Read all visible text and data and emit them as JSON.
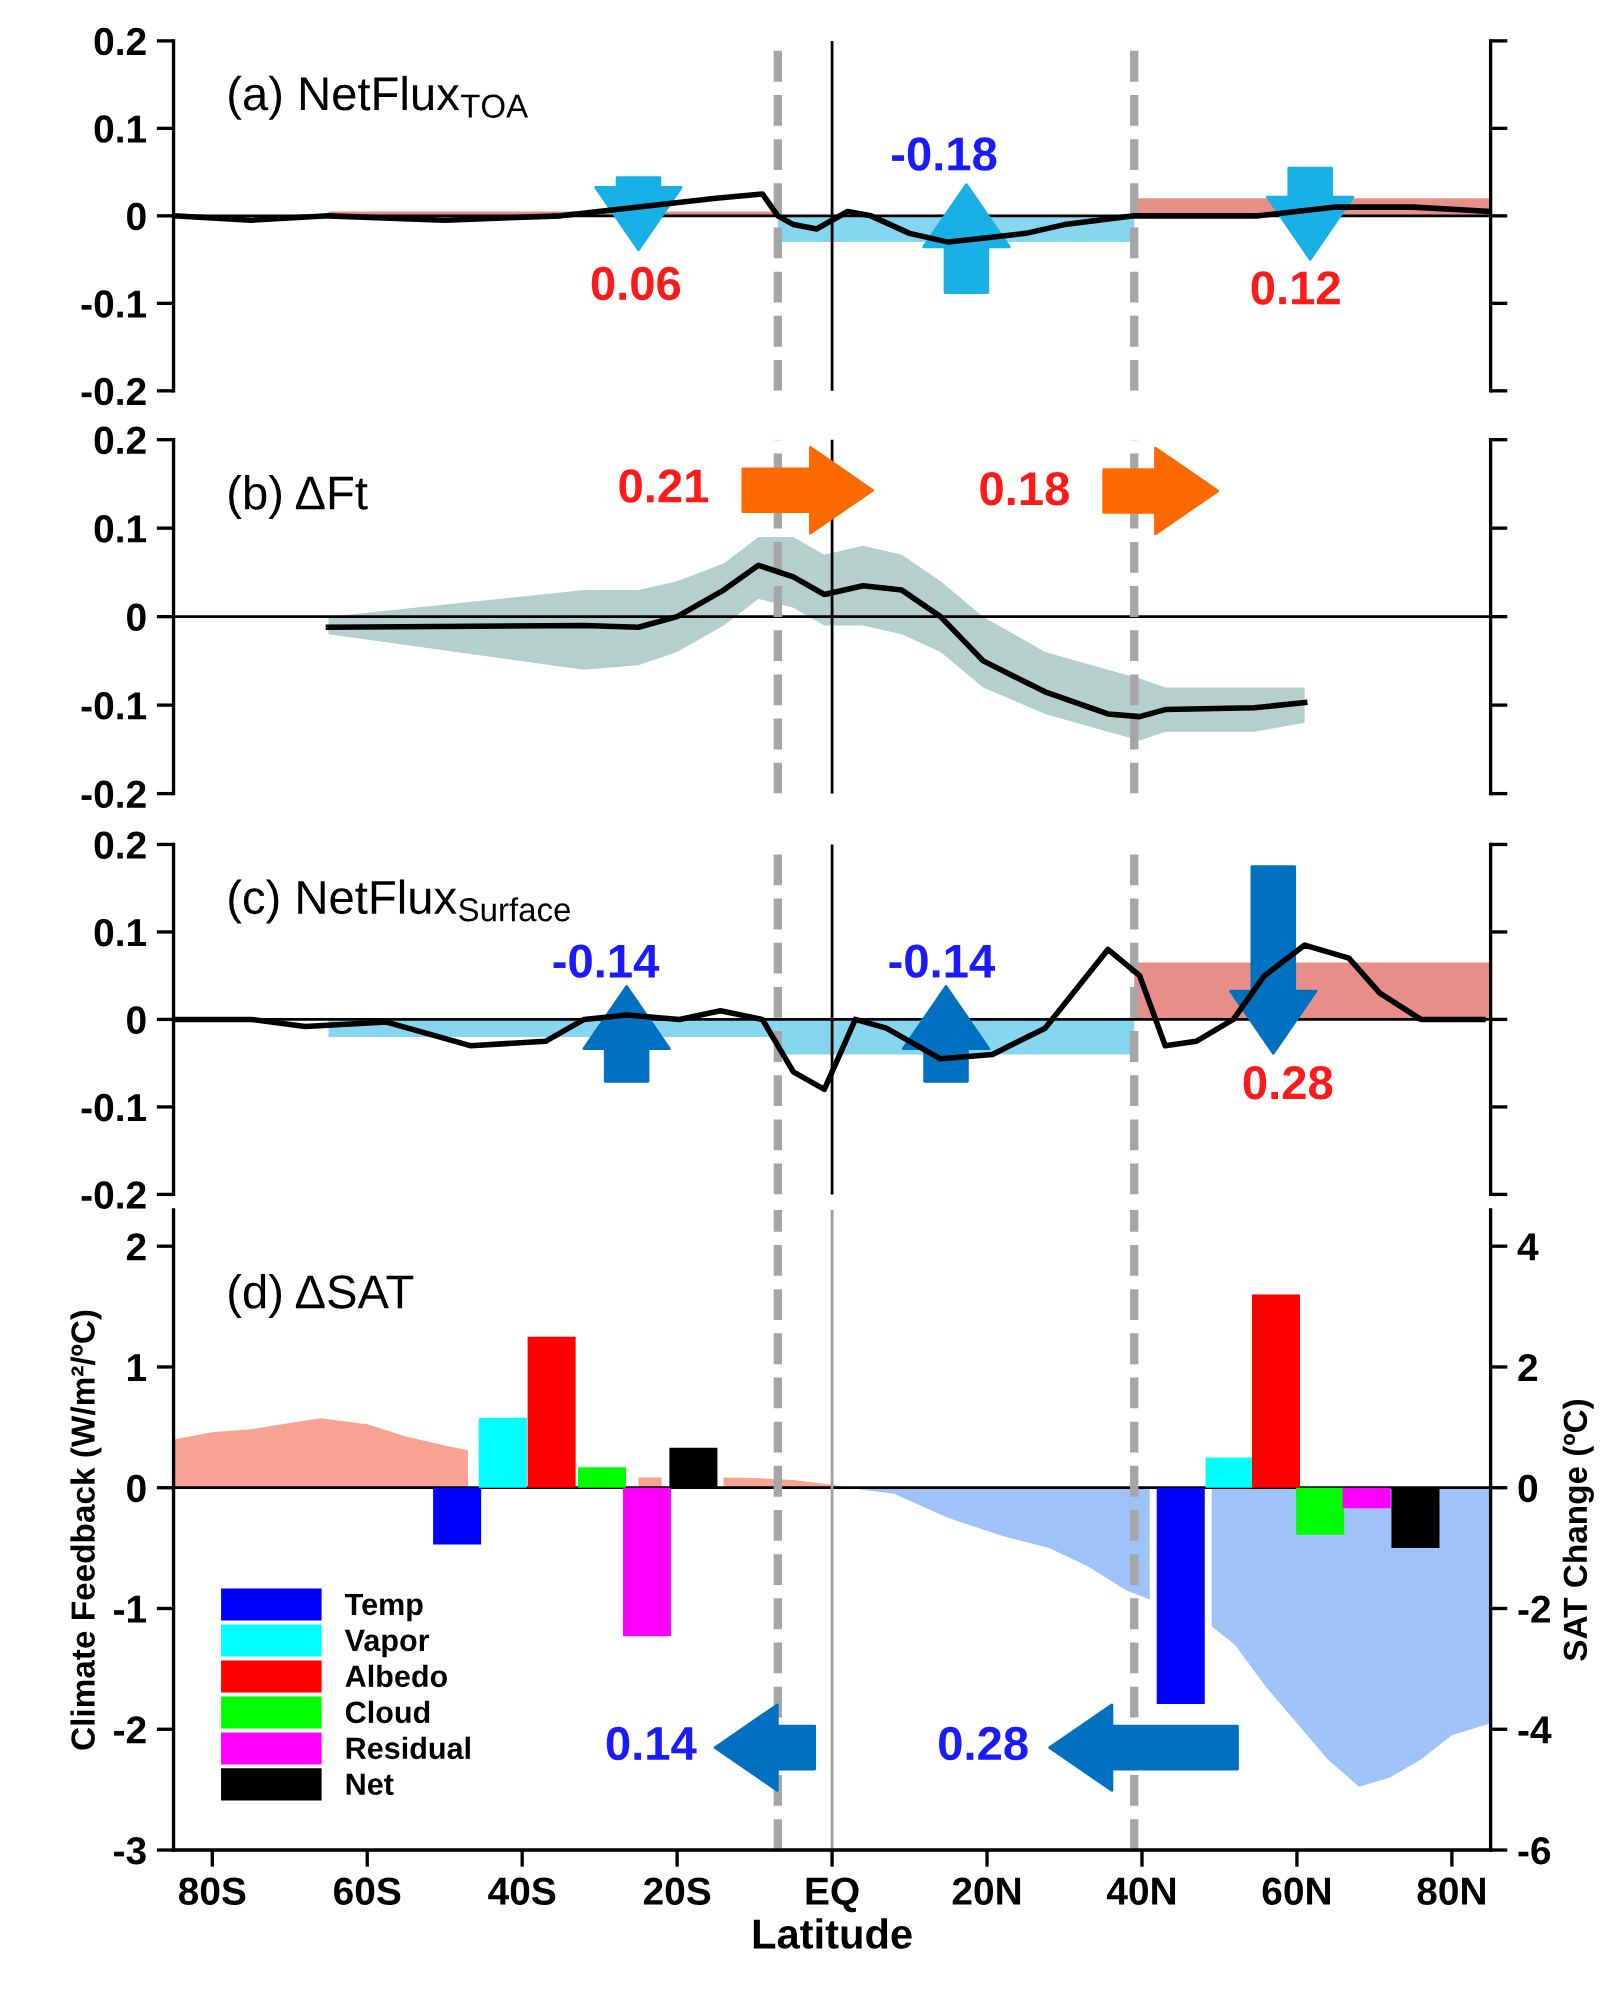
{
  "chart_data": [
    {
      "type": "line",
      "title": "(a) NetFlux$_{TOA}$",
      "xlim": [
        -85,
        85
      ],
      "ylim": [
        -0.2,
        0.2
      ],
      "yticks": [
        -0.2,
        -0.1,
        0,
        0.1,
        0.2
      ],
      "tick_labels": "y",
      "grid": false,
      "legend": false,
      "series": [
        {
          "type": "area",
          "color": "#e88e88",
          "x": [
            -65,
            -7
          ],
          "values": [
            0.005,
            0.005
          ]
        },
        {
          "type": "area",
          "color": "#86d6f0",
          "x": [
            -7,
            39
          ],
          "values": [
            -0.03,
            -0.03
          ]
        },
        {
          "type": "area",
          "color": "#e88e88",
          "x": [
            39,
            85
          ],
          "values": [
            0.02,
            0.02
          ]
        },
        {
          "color": "#000000",
          "x": [
            -85,
            -75,
            -65,
            -50,
            -35,
            -25,
            -15,
            -9,
            -7,
            -5,
            -2,
            2,
            5,
            10,
            15,
            20,
            25,
            30,
            39,
            45,
            55,
            65,
            75,
            85
          ],
          "values": [
            0,
            -0.005,
            0,
            -0.005,
            0,
            0.01,
            0.02,
            0.025,
            0,
            -0.01,
            -0.015,
            0.005,
            0,
            -0.02,
            -0.03,
            -0.025,
            -0.02,
            -0.01,
            0,
            0,
            0,
            0.01,
            0.01,
            0.005
          ]
        }
      ],
      "ref_lines": [
        {
          "axis": "y",
          "value": 0,
          "color": "#000000"
        },
        {
          "axis": "x",
          "value": 0,
          "color": "#000000"
        },
        {
          "axis": "x",
          "value": -7,
          "color": "#a6a6a6",
          "line_style": "dashed"
        },
        {
          "axis": "x",
          "value": 39,
          "color": "#a6a6a6",
          "line_style": "dashed"
        }
      ],
      "annotations": [
        "0.06",
        "-0.18",
        "0.12"
      ]
    },
    {
      "type": "line",
      "title": "(b) ΔFt",
      "xlim": [
        -85,
        85
      ],
      "ylim": [
        -0.2,
        0.2
      ],
      "yticks": [
        -0.2,
        -0.1,
        0,
        0.1,
        0.2
      ],
      "tick_labels": "y",
      "grid": false,
      "legend": false,
      "series": [
        {
          "color": "#000000",
          "x": [
            -65,
            -32,
            -25,
            -20,
            -14,
            -9.5,
            -5,
            -1,
            4,
            9,
            14,
            19.5,
            27.5,
            35.6,
            39.7,
            43,
            54.5,
            61
          ],
          "values": [
            -0.012,
            -0.01,
            -0.012,
            0,
            0.03,
            0.058,
            0.045,
            0.025,
            0.035,
            0.03,
            0,
            -0.05,
            -0.085,
            -0.11,
            -0.113,
            -0.105,
            -0.103,
            -0.097
          ],
          "lower": [
            -0.02,
            -0.06,
            -0.055,
            -0.04,
            -0.01,
            0.02,
            0.01,
            -0.01,
            -0.01,
            -0.02,
            -0.04,
            -0.08,
            -0.11,
            -0.13,
            -0.14,
            -0.13,
            -0.13,
            -0.12
          ],
          "upper": [
            0,
            0.03,
            0.03,
            0.04,
            0.06,
            0.09,
            0.09,
            0.07,
            0.08,
            0.07,
            0.04,
            0,
            -0.04,
            -0.06,
            -0.07,
            -0.08,
            -0.08,
            -0.08
          ]
        }
      ],
      "ref_lines": [
        {
          "axis": "y",
          "value": 0,
          "color": "#000000"
        },
        {
          "axis": "x",
          "value": 0,
          "color": "#000000"
        },
        {
          "axis": "x",
          "value": -7,
          "color": "#a6a6a6",
          "line_style": "dashed"
        },
        {
          "axis": "x",
          "value": 39,
          "color": "#a6a6a6",
          "line_style": "dashed"
        }
      ],
      "annotations": [
        "0.21",
        "0.18"
      ]
    },
    {
      "type": "line",
      "title": "(c) NetFlux$_{Surface}$",
      "xlim": [
        -85,
        85
      ],
      "ylim": [
        -0.2,
        0.2
      ],
      "yticks": [
        -0.2,
        -0.1,
        0,
        0.1,
        0.2
      ],
      "tick_labels": "y",
      "grid": false,
      "legend": false,
      "series": [
        {
          "type": "area",
          "color": "#86d6f0",
          "x": [
            -65,
            -7
          ],
          "values": [
            -0.02,
            -0.02
          ]
        },
        {
          "type": "area",
          "color": "#86d6f0",
          "x": [
            -7,
            39
          ],
          "values": [
            -0.04,
            -0.04
          ]
        },
        {
          "type": "area",
          "color": "#e88e88",
          "x": [
            39,
            85
          ],
          "values": [
            0.065,
            0.065
          ]
        },
        {
          "color": "#000000",
          "x": [
            -84.5,
            -75,
            -68,
            -57.5,
            -46.7,
            -37,
            -32,
            -26.5,
            -19.7,
            -14.4,
            -9,
            -5,
            -1,
            3,
            7,
            14,
            20.7,
            27.5,
            35.6,
            39.7,
            43,
            47,
            51.8,
            55.8,
            61,
            66.7,
            70.7,
            76,
            84
          ],
          "values": [
            0,
            0,
            -0.008,
            -0.003,
            -0.03,
            -0.025,
            0,
            0.005,
            0,
            0.01,
            0,
            -0.06,
            -0.08,
            0,
            -0.01,
            -0.045,
            -0.04,
            -0.01,
            0.08,
            0.05,
            -0.03,
            -0.025,
            0,
            0.05,
            0.085,
            0.07,
            0.03,
            0,
            0
          ]
        }
      ],
      "ref_lines": [
        {
          "axis": "y",
          "value": 0,
          "color": "#000000"
        },
        {
          "axis": "x",
          "value": 0,
          "color": "#000000"
        },
        {
          "axis": "x",
          "value": -7,
          "color": "#a6a6a6",
          "line_style": "dashed"
        },
        {
          "axis": "x",
          "value": 39,
          "color": "#a6a6a6",
          "line_style": "dashed"
        }
      ],
      "annotations": [
        "-0.14",
        "-0.14",
        "0.28"
      ]
    },
    {
      "type": "bar",
      "title": "(d) ΔSAT",
      "xlabel": "Latitude",
      "ylabel": "Climate Feedback (W/m²/ºC)",
      "y2label": "SAT Change (ºC)",
      "xlim": [
        -85,
        85
      ],
      "ylim": [
        -3,
        2.3
      ],
      "yticks": [
        -3,
        -2,
        -1,
        0,
        1,
        2
      ],
      "y2lim": [
        -6,
        4.6
      ],
      "y2ticks": [
        -6,
        -4,
        -2,
        0,
        2,
        4
      ],
      "xticks": [
        {
          "value": -80,
          "label": "80S"
        },
        {
          "value": -60,
          "label": "60S"
        },
        {
          "value": -40,
          "label": "40S"
        },
        {
          "value": -20,
          "label": "20S"
        },
        {
          "value": 0,
          "label": "EQ"
        },
        {
          "value": 20,
          "label": "20N"
        },
        {
          "value": 40,
          "label": "40N"
        },
        {
          "value": 60,
          "label": "60N"
        },
        {
          "value": 80,
          "label": "80N"
        }
      ],
      "grid": false,
      "legend": "bottom left",
      "series": [
        {
          "type": "area",
          "axis": "y2",
          "color": "#f8a394",
          "x": [
            -85,
            -80,
            -75,
            -70,
            -66,
            -60,
            -55,
            -50,
            -47,
            -43,
            -35,
            -30,
            -25,
            -22,
            -18,
            -14,
            -10,
            -5,
            0,
            2
          ],
          "values": [
            0.8,
            0.92,
            0.97,
            1.07,
            1.15,
            1.05,
            0.85,
            0.7,
            0.62,
            null,
            null,
            null,
            0.17,
            0.17,
            null,
            0.17,
            0.16,
            0.13,
            0.05,
            0
          ]
        },
        {
          "type": "area",
          "axis": "y2",
          "color": "#9fc3f8",
          "x": [
            2,
            8,
            15,
            22,
            28,
            33,
            38,
            41,
            45,
            49,
            52,
            56,
            60,
            64,
            68,
            72,
            76,
            80,
            85
          ],
          "values": [
            0,
            -0.1,
            -0.5,
            -0.8,
            -1.0,
            -1.3,
            -1.7,
            -1.85,
            null,
            -2.3,
            -2.6,
            -3.3,
            -3.9,
            -4.5,
            -4.95,
            -4.8,
            -4.5,
            -4.1,
            -3.9
          ]
        },
        {
          "name": "Temp",
          "color": "#0000ff",
          "x": [
            -48.4,
            45
          ],
          "values": [
            -0.47,
            -1.79
          ]
        },
        {
          "name": "Vapor",
          "color": "#00ffff",
          "x": [
            -42.5,
            51.3
          ],
          "values": [
            0.58,
            0.25
          ]
        },
        {
          "name": "Albedo",
          "color": "#ff0000",
          "x": [
            -36.2,
            57.3
          ],
          "values": [
            1.25,
            1.6
          ]
        },
        {
          "name": "Cloud",
          "color": "#00ff00",
          "x": [
            -29.7,
            63
          ],
          "values": [
            0.17,
            -0.39
          ]
        },
        {
          "name": "Residual",
          "color": "#ff00ff",
          "x": [
            -23.9,
            69
          ],
          "values": [
            -1.23,
            -0.17
          ]
        },
        {
          "name": "Net",
          "color": "#000000",
          "x": [
            -17.9,
            75.3
          ],
          "values": [
            0.33,
            -0.5
          ]
        }
      ],
      "ref_lines": [
        {
          "axis": "y",
          "value": 0,
          "color": "#000000"
        },
        {
          "axis": "x",
          "value": 0,
          "color": "#a0a0a0"
        },
        {
          "axis": "x",
          "value": -7,
          "color": "#a6a6a6",
          "line_style": "dashed"
        },
        {
          "axis": "x",
          "value": 39,
          "color": "#a6a6a6",
          "line_style": "dashed"
        }
      ],
      "annotations": [
        "0.14",
        "0.28"
      ]
    }
  ]
}
